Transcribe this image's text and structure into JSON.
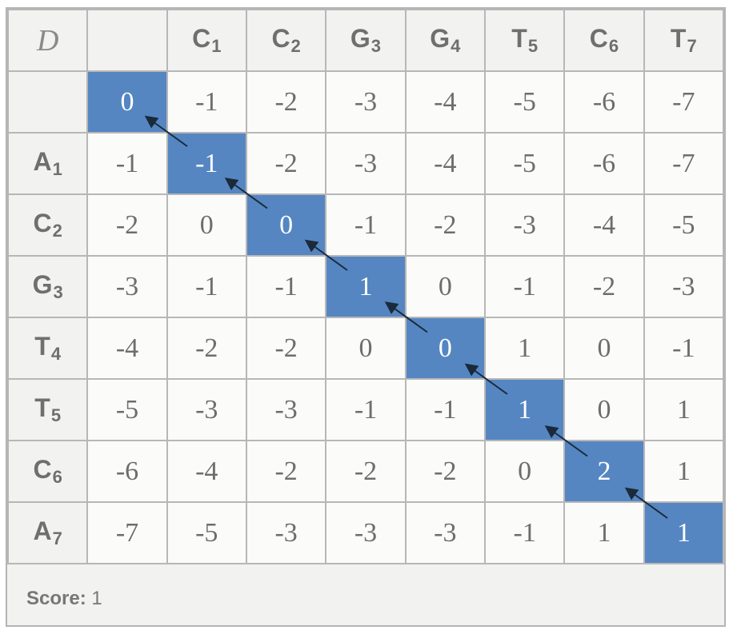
{
  "corner_label": "D",
  "columns": [
    {
      "letter": "",
      "index": ""
    },
    {
      "letter": "C",
      "index": "1"
    },
    {
      "letter": "C",
      "index": "2"
    },
    {
      "letter": "G",
      "index": "3"
    },
    {
      "letter": "G",
      "index": "4"
    },
    {
      "letter": "T",
      "index": "5"
    },
    {
      "letter": "C",
      "index": "6"
    },
    {
      "letter": "T",
      "index": "7"
    }
  ],
  "rows": [
    {
      "letter": "",
      "index": "",
      "values": [
        "0",
        "-1",
        "-2",
        "-3",
        "-4",
        "-5",
        "-6",
        "-7"
      ]
    },
    {
      "letter": "A",
      "index": "1",
      "values": [
        "-1",
        "-1",
        "-2",
        "-3",
        "-4",
        "-5",
        "-6",
        "-7"
      ]
    },
    {
      "letter": "C",
      "index": "2",
      "values": [
        "-2",
        "0",
        "0",
        "-1",
        "-2",
        "-3",
        "-4",
        "-5"
      ]
    },
    {
      "letter": "G",
      "index": "3",
      "values": [
        "-3",
        "-1",
        "-1",
        "1",
        "0",
        "-1",
        "-2",
        "-3"
      ]
    },
    {
      "letter": "T",
      "index": "4",
      "values": [
        "-4",
        "-2",
        "-2",
        "0",
        "0",
        "1",
        "0",
        "-1"
      ]
    },
    {
      "letter": "T",
      "index": "5",
      "values": [
        "-5",
        "-3",
        "-3",
        "-1",
        "-1",
        "1",
        "0",
        "1"
      ]
    },
    {
      "letter": "C",
      "index": "6",
      "values": [
        "-6",
        "-4",
        "-2",
        "-2",
        "-2",
        "0",
        "2",
        "1"
      ]
    },
    {
      "letter": "A",
      "index": "7",
      "values": [
        "-7",
        "-5",
        "-3",
        "-3",
        "-3",
        "-1",
        "1",
        "1"
      ]
    }
  ],
  "traceback_path": [
    [
      0,
      0
    ],
    [
      1,
      1
    ],
    [
      2,
      2
    ],
    [
      3,
      3
    ],
    [
      4,
      4
    ],
    [
      5,
      5
    ],
    [
      6,
      6
    ],
    [
      7,
      7
    ]
  ],
  "colors": {
    "path": "#5586c2",
    "cell": "#fbfbfa",
    "header": "#f2f2f1",
    "arrow": "#1a2a3a"
  },
  "score": {
    "label": "Score:",
    "value": "1"
  }
}
